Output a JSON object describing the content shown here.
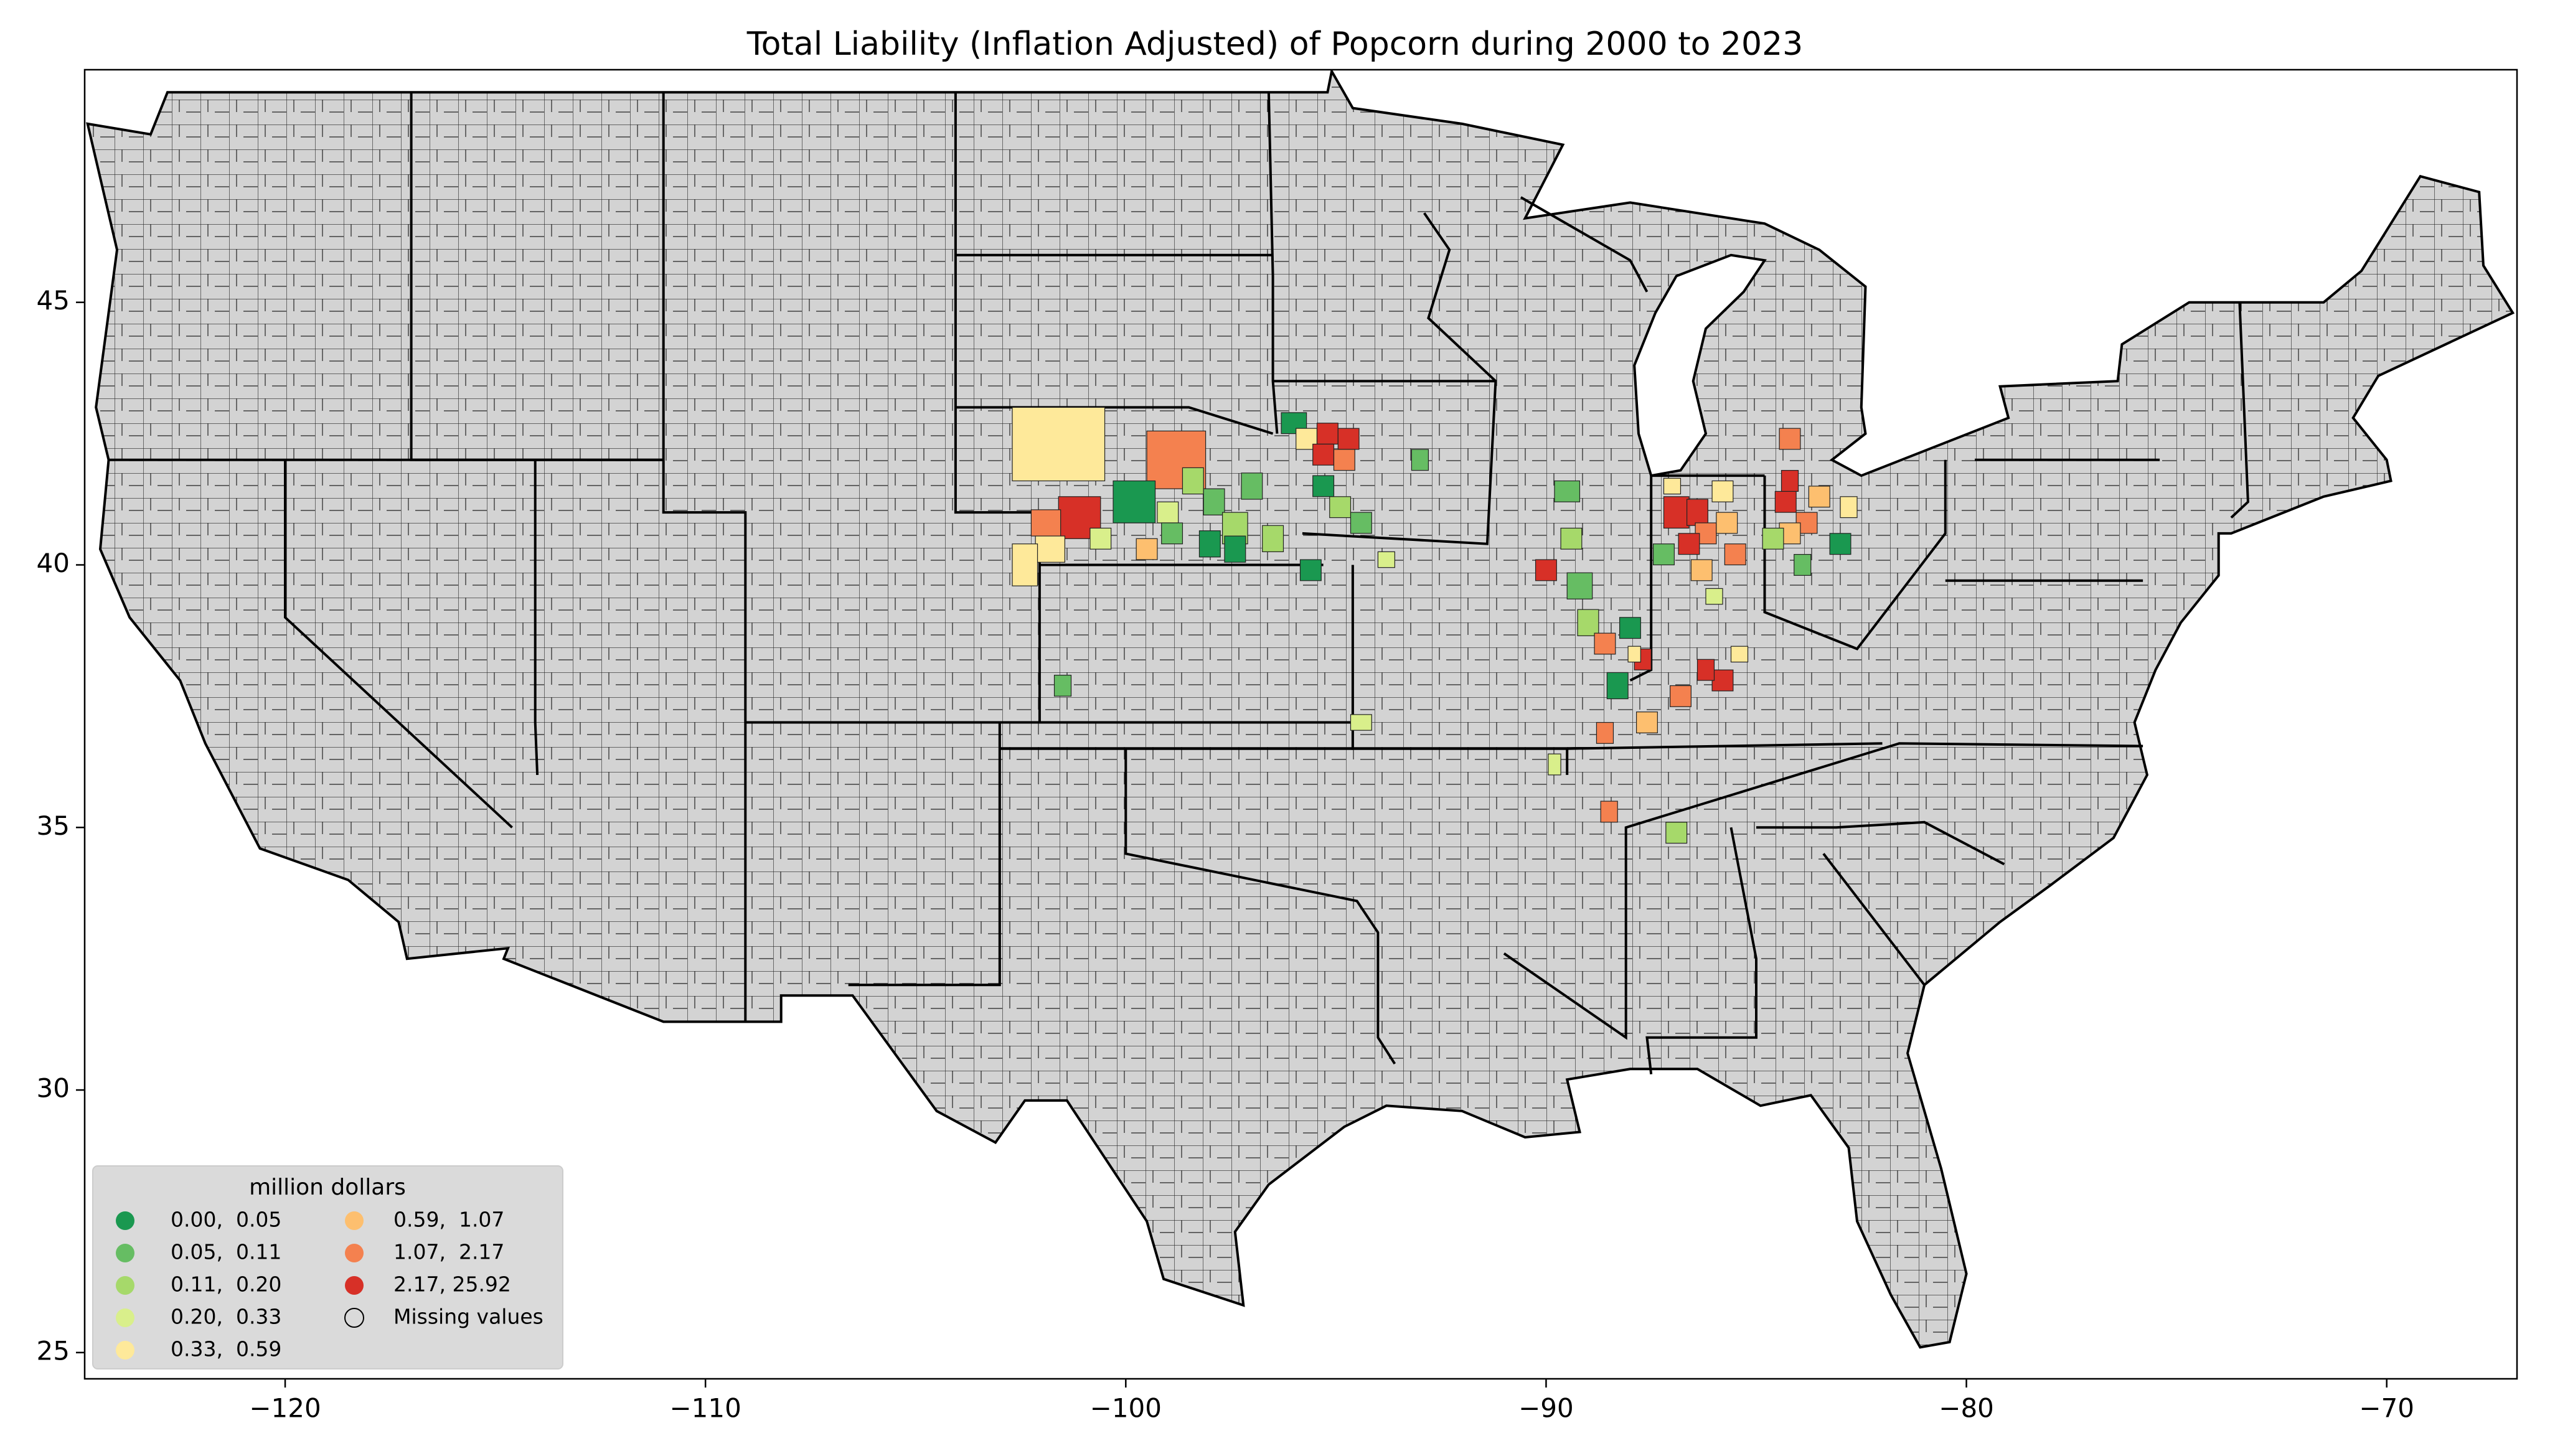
{
  "chart_data": {
    "type": "choropleth",
    "title": "Total Liability  (Inflation Adjusted) of Popcorn during 2000 to 2023",
    "xlim": [
      -124.77,
      -66.9
    ],
    "ylim": [
      24.5,
      49.43
    ],
    "xticks": [
      {
        "value": -120,
        "label": "−120"
      },
      {
        "value": -110,
        "label": "−110"
      },
      {
        "value": -100,
        "label": "−100"
      },
      {
        "value": -90,
        "label": "−90"
      },
      {
        "value": -80,
        "label": "−80"
      },
      {
        "value": -70,
        "label": "−70"
      }
    ],
    "yticks": [
      25,
      30,
      35,
      40,
      45
    ],
    "legend": {
      "title": "million dollars",
      "entries": [
        {
          "label": "0.00,  0.05",
          "color": "#1a9850"
        },
        {
          "label": "0.05,  0.11",
          "color": "#66bd63"
        },
        {
          "label": "0.11,  0.20",
          "color": "#a6d96a"
        },
        {
          "label": "0.20,  0.33",
          "color": "#d9ef8b"
        },
        {
          "label": "0.33,  0.59",
          "color": "#fee99a"
        },
        {
          "label": "0.59,  1.07",
          "color": "#fdbf6f"
        },
        {
          "label": "1.07,  2.17",
          "color": "#f4814f"
        },
        {
          "label": "2.17, 25.92",
          "color": "#d73027"
        },
        {
          "label": "Missing values"
        }
      ]
    }
  }
}
